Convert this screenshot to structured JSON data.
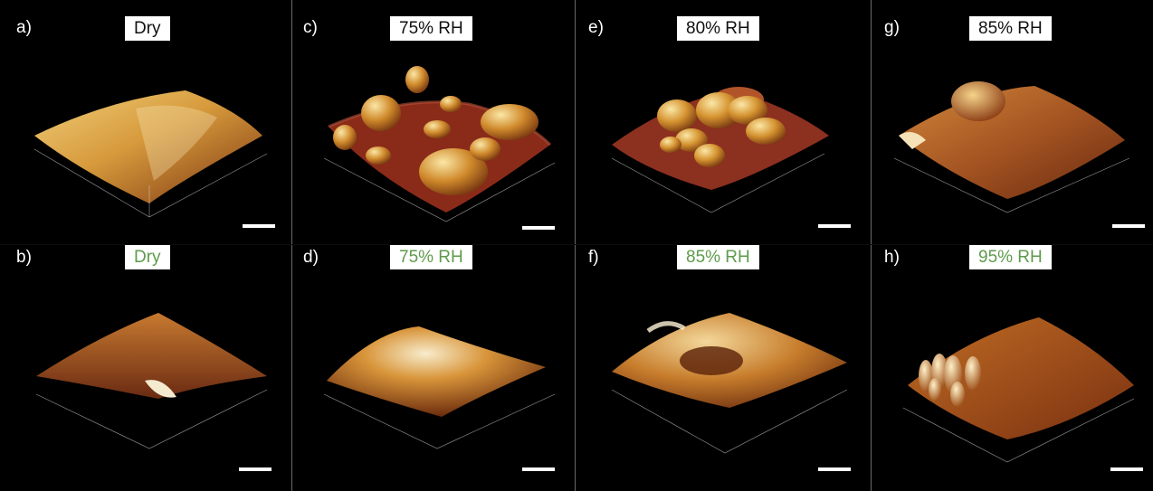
{
  "figure": {
    "panels": [
      {
        "id": "a",
        "label": "a)",
        "condition": "Dry",
        "label_color": "dark"
      },
      {
        "id": "c",
        "label": "c)",
        "condition": "75% RH",
        "label_color": "dark"
      },
      {
        "id": "e",
        "label": "e)",
        "condition": "80% RH",
        "label_color": "dark"
      },
      {
        "id": "g",
        "label": "g)",
        "condition": "85% RH",
        "label_color": "dark"
      },
      {
        "id": "b",
        "label": "b)",
        "condition": "Dry",
        "label_color": "green"
      },
      {
        "id": "d",
        "label": "d)",
        "condition": "75% RH",
        "label_color": "green"
      },
      {
        "id": "f",
        "label": "f)",
        "condition": "85% RH",
        "label_color": "green"
      },
      {
        "id": "h",
        "label": "h)",
        "condition": "95% RH",
        "label_color": "green"
      }
    ],
    "colors": {
      "background": "#000000",
      "title_dark": "#111111",
      "title_green": "#5e9b4c",
      "surface_light": "#f2d27a",
      "surface_mid": "#c47a22",
      "surface_dark": "#6b2a0e",
      "surface_red": "#8a2b1a"
    },
    "surface_style": "AFM 3D topography"
  }
}
